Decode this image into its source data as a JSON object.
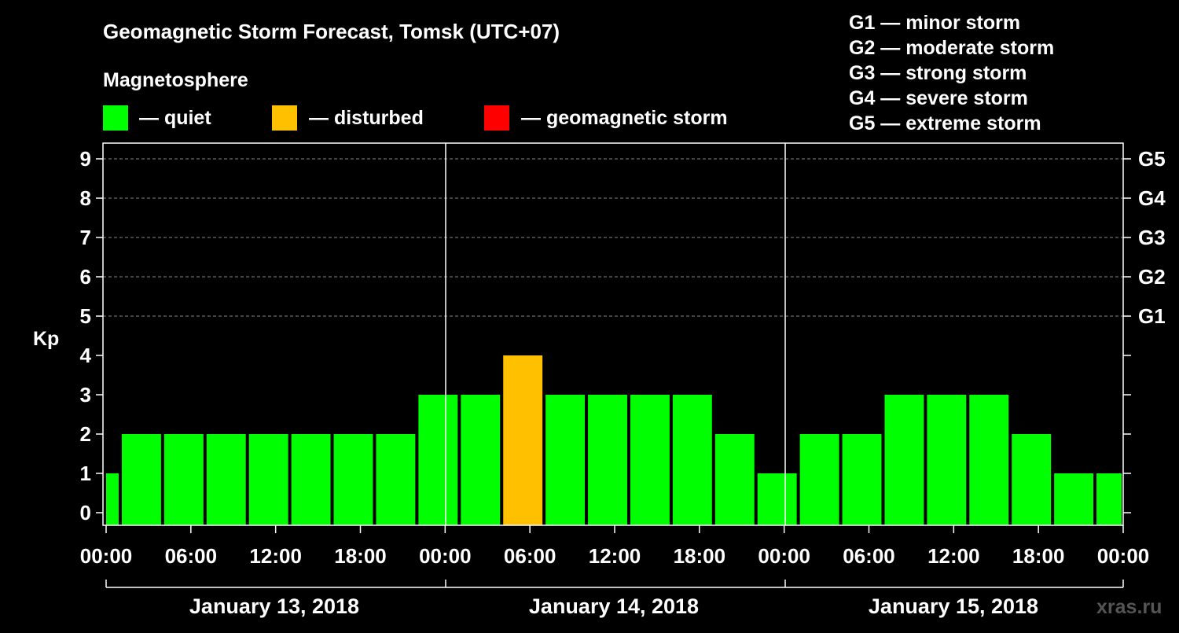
{
  "title": "Geomagnetic Storm Forecast, Tomsk (UTC+07)",
  "legend": {
    "heading": "Magnetosphere",
    "items": [
      {
        "label": "— quiet",
        "color": "#00ff00"
      },
      {
        "label": "— disturbed",
        "color": "#ffc000"
      },
      {
        "label": "— geomagnetic storm",
        "color": "#ff0000"
      }
    ]
  },
  "scale_legend": [
    "G1 — minor storm",
    "G2 — moderate storm",
    "G3 — strong storm",
    "G4 — severe storm",
    "G5 — extreme storm"
  ],
  "watermark": "xras.ru",
  "chart_data": {
    "type": "bar",
    "ylabel": "Kp",
    "ylim": [
      0,
      9
    ],
    "yticks": [
      0,
      1,
      2,
      3,
      4,
      5,
      6,
      7,
      8,
      9
    ],
    "right_axis_labels": [
      {
        "kp": 5,
        "label": "G1"
      },
      {
        "kp": 6,
        "label": "G2"
      },
      {
        "kp": 7,
        "label": "G3"
      },
      {
        "kp": 8,
        "label": "G4"
      },
      {
        "kp": 9,
        "label": "G5"
      }
    ],
    "xtick_labels": [
      "00:00",
      "06:00",
      "12:00",
      "18:00",
      "00:00",
      "06:00",
      "12:00",
      "18:00",
      "00:00",
      "06:00",
      "12:00",
      "18:00",
      "00:00"
    ],
    "days": [
      "January 13, 2018",
      "January 14, 2018",
      "January 15, 2018"
    ],
    "x_range_hours": [
      0,
      72
    ],
    "grid": "dashed horizontal at Kp 5-9",
    "series": [
      {
        "bars": [
          {
            "start_hour": 0,
            "end_hour": 1,
            "kp": 1,
            "status": "quiet"
          },
          {
            "start_hour": 1,
            "end_hour": 4,
            "kp": 2,
            "status": "quiet"
          },
          {
            "start_hour": 4,
            "end_hour": 7,
            "kp": 2,
            "status": "quiet"
          },
          {
            "start_hour": 7,
            "end_hour": 10,
            "kp": 2,
            "status": "quiet"
          },
          {
            "start_hour": 10,
            "end_hour": 13,
            "kp": 2,
            "status": "quiet"
          },
          {
            "start_hour": 13,
            "end_hour": 16,
            "kp": 2,
            "status": "quiet"
          },
          {
            "start_hour": 16,
            "end_hour": 19,
            "kp": 2,
            "status": "quiet"
          },
          {
            "start_hour": 19,
            "end_hour": 22,
            "kp": 2,
            "status": "quiet"
          },
          {
            "start_hour": 22,
            "end_hour": 25,
            "kp": 3,
            "status": "quiet"
          },
          {
            "start_hour": 25,
            "end_hour": 28,
            "kp": 3,
            "status": "quiet"
          },
          {
            "start_hour": 28,
            "end_hour": 31,
            "kp": 4,
            "status": "disturbed"
          },
          {
            "start_hour": 31,
            "end_hour": 34,
            "kp": 3,
            "status": "quiet"
          },
          {
            "start_hour": 34,
            "end_hour": 37,
            "kp": 3,
            "status": "quiet"
          },
          {
            "start_hour": 37,
            "end_hour": 40,
            "kp": 3,
            "status": "quiet"
          },
          {
            "start_hour": 40,
            "end_hour": 43,
            "kp": 3,
            "status": "quiet"
          },
          {
            "start_hour": 43,
            "end_hour": 46,
            "kp": 2,
            "status": "quiet"
          },
          {
            "start_hour": 46,
            "end_hour": 49,
            "kp": 1,
            "status": "quiet"
          },
          {
            "start_hour": 49,
            "end_hour": 52,
            "kp": 2,
            "status": "quiet"
          },
          {
            "start_hour": 52,
            "end_hour": 55,
            "kp": 2,
            "status": "quiet"
          },
          {
            "start_hour": 55,
            "end_hour": 58,
            "kp": 3,
            "status": "quiet"
          },
          {
            "start_hour": 58,
            "end_hour": 61,
            "kp": 3,
            "status": "quiet"
          },
          {
            "start_hour": 61,
            "end_hour": 64,
            "kp": 3,
            "status": "quiet"
          },
          {
            "start_hour": 64,
            "end_hour": 67,
            "kp": 2,
            "status": "quiet"
          },
          {
            "start_hour": 67,
            "end_hour": 70,
            "kp": 1,
            "status": "quiet"
          },
          {
            "start_hour": 70,
            "end_hour": 72,
            "kp": 1,
            "status": "quiet"
          }
        ]
      }
    ],
    "status_colors": {
      "quiet": "#00ff00",
      "disturbed": "#ffc000",
      "storm": "#ff0000"
    }
  }
}
